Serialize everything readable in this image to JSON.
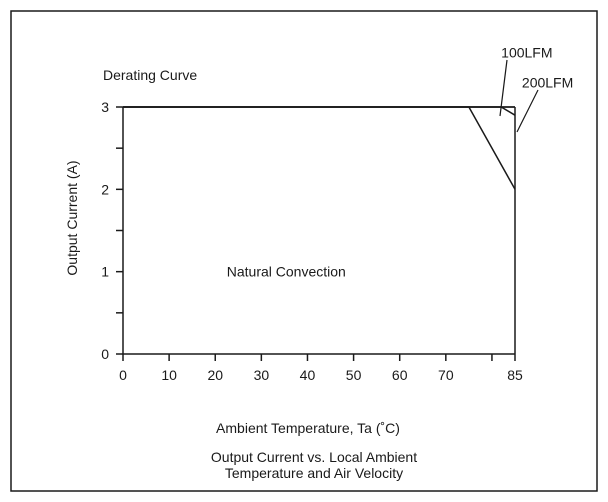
{
  "chart_data": {
    "type": "line",
    "title": "Derating Curve",
    "caption_lines": [
      "Output Current vs. Local Ambient",
      "Temperature and Air Velocity"
    ],
    "xlabel": "Ambient Temperature,  Ta (˚C)",
    "ylabel": "Output Current (A)",
    "xlim": [
      0,
      85
    ],
    "ylim": [
      0,
      3
    ],
    "x_ticks": [
      0,
      10,
      20,
      30,
      40,
      50,
      60,
      70,
      80,
      85
    ],
    "x_tick_labels": [
      "0",
      "10",
      "20",
      "30",
      "40",
      "50",
      "60",
      "70",
      "",
      "85"
    ],
    "y_ticks": [
      0,
      0.5,
      1,
      1.5,
      2,
      2.5,
      3
    ],
    "y_tick_labels": [
      "0",
      "",
      "1",
      "",
      "2",
      "",
      "3"
    ],
    "grid": false,
    "line_color": "#1a1a1a",
    "series": [
      {
        "name": "Natural Convection",
        "x": [
          0,
          75,
          85
        ],
        "y": [
          3,
          3,
          2
        ]
      },
      {
        "name": "100LFM",
        "x": [
          0,
          82,
          85
        ],
        "y": [
          3,
          3,
          2.9
        ]
      },
      {
        "name": "200LFM",
        "x": [
          0,
          85
        ],
        "y": [
          3,
          3
        ]
      }
    ],
    "annotations": [
      {
        "text": "Natural Convection",
        "x": 22.5,
        "y": 1
      },
      {
        "text": "100LFM",
        "x": 82,
        "y": 3.66
      },
      {
        "text": "200LFM",
        "x": 86.5,
        "y": 3.3
      }
    ]
  }
}
